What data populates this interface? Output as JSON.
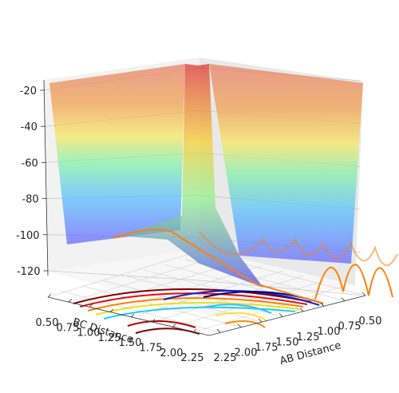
{
  "chart_data": {
    "type": "surface",
    "title": "",
    "xlabel": "AB Distance",
    "ylabel": "BC Distance",
    "zlabel": "",
    "x_ticks": [
      "0.50",
      "0.75",
      "1.00",
      "1.25",
      "1.50",
      "1.75",
      "2.00",
      "2.25"
    ],
    "y_ticks": [
      "0.50",
      "0.75",
      "1.00",
      "1.25",
      "1.50",
      "1.75",
      "2.00",
      "2.25"
    ],
    "z_ticks": [
      "-20",
      "-40",
      "-60",
      "-80",
      "-100",
      "-120"
    ],
    "xlim": [
      0.5,
      2.4
    ],
    "ylim": [
      0.5,
      2.4
    ],
    "zlim": [
      -135,
      -20
    ],
    "colormap": "jet",
    "contour_projection": "floor",
    "trajectory_color": "#ff7f0e",
    "grid": true
  }
}
